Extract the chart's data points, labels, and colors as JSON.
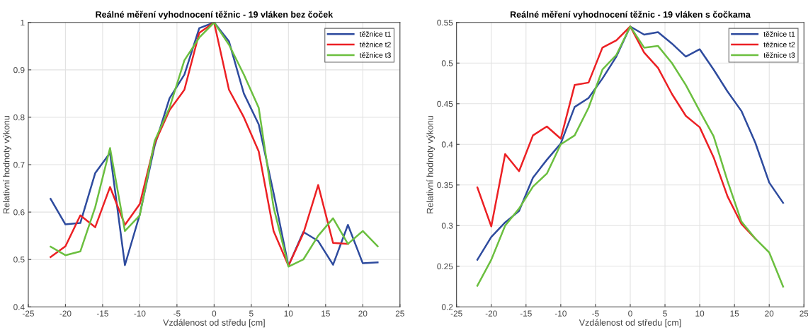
{
  "chart_data": [
    {
      "type": "line",
      "title": "Reálné měření vyhodnocení těžnic - 19 vláken bez čoček",
      "xlabel": "Vzdálenost od středu [cm]",
      "ylabel": "Relativní hodnoty výkonu",
      "x": [
        -22,
        -20,
        -18,
        -16,
        -14,
        -12,
        -10,
        -8,
        -6,
        -4,
        -2,
        0,
        2,
        4,
        6,
        8,
        10,
        12,
        14,
        16,
        18,
        20,
        22
      ],
      "series": [
        {
          "name": "těžnice t1",
          "color": "#2e4b9e",
          "values": [
            0.628,
            0.574,
            0.577,
            0.682,
            0.725,
            0.488,
            0.595,
            0.74,
            0.84,
            0.89,
            0.988,
            1.0,
            0.96,
            0.85,
            0.785,
            0.64,
            0.487,
            0.558,
            0.539,
            0.489,
            0.573,
            0.492,
            0.494
          ]
        },
        {
          "name": "těžnice t2",
          "color": "#ec2024",
          "values": [
            0.505,
            0.528,
            0.593,
            0.568,
            0.653,
            0.573,
            0.617,
            0.745,
            0.815,
            0.858,
            0.978,
            1.0,
            0.858,
            0.8,
            0.728,
            0.56,
            0.487,
            0.555,
            0.657,
            0.535,
            0.533,
            null,
            null
          ]
        },
        {
          "name": "těžnice t3",
          "color": "#6bbf3f",
          "values": [
            0.527,
            0.509,
            0.517,
            0.61,
            0.735,
            0.56,
            0.593,
            0.75,
            0.82,
            0.92,
            0.968,
            1.0,
            0.953,
            0.89,
            0.82,
            0.61,
            0.485,
            0.5,
            0.55,
            0.587,
            0.533,
            0.56,
            0.528
          ]
        }
      ],
      "xlim": [
        -25,
        25
      ],
      "xticks": [
        -25,
        -20,
        -15,
        -10,
        -5,
        0,
        5,
        10,
        15,
        20,
        25
      ],
      "ylim": [
        0.4,
        1
      ],
      "yticks": [
        0.4,
        0.5,
        0.6,
        0.7,
        0.8,
        0.9,
        1
      ],
      "grid": true,
      "legend": "top right",
      "line_style": "solid"
    },
    {
      "type": "line",
      "title": "Reálné měření vyhodnocení těžnic - 19 vláken s čočkama",
      "xlabel": "Vzdálenost od středu [cm]",
      "ylabel": "Relativní hodnoty výkonu",
      "x": [
        -22,
        -20,
        -18,
        -16,
        -14,
        -12,
        -10,
        -8,
        -6,
        -4,
        -2,
        0,
        2,
        4,
        6,
        8,
        10,
        12,
        14,
        16,
        18,
        20,
        22
      ],
      "series": [
        {
          "name": "těžnice t1",
          "color": "#2e4b9e",
          "values": [
            0.258,
            0.286,
            0.304,
            0.318,
            0.359,
            0.381,
            0.401,
            0.446,
            0.457,
            0.481,
            0.508,
            0.545,
            0.535,
            0.538,
            0.524,
            0.508,
            0.517,
            0.492,
            0.465,
            0.441,
            0.402,
            0.353,
            0.328
          ]
        },
        {
          "name": "těžnice t2",
          "color": "#ec2024",
          "values": [
            0.347,
            0.299,
            0.388,
            0.367,
            0.411,
            0.422,
            0.407,
            0.473,
            0.476,
            0.519,
            0.528,
            0.545,
            0.513,
            0.494,
            0.462,
            0.435,
            0.421,
            0.384,
            0.336,
            0.302,
            0.284,
            null,
            null
          ]
        },
        {
          "name": "těžnice t3",
          "color": "#6bbf3f",
          "values": [
            0.226,
            0.258,
            0.3,
            0.321,
            0.348,
            0.364,
            0.4,
            0.411,
            0.445,
            0.492,
            0.51,
            0.545,
            0.519,
            0.521,
            0.5,
            0.473,
            0.441,
            0.41,
            0.355,
            0.305,
            0.284,
            0.267,
            0.225
          ]
        }
      ],
      "xlim": [
        -25,
        25
      ],
      "xticks": [
        -25,
        -20,
        -15,
        -10,
        -5,
        0,
        5,
        10,
        15,
        20,
        25
      ],
      "ylim": [
        0.2,
        0.55
      ],
      "yticks": [
        0.2,
        0.25,
        0.3,
        0.35,
        0.4,
        0.45,
        0.5,
        0.55
      ],
      "grid": true,
      "legend": "top right",
      "line_style": "solid"
    }
  ]
}
